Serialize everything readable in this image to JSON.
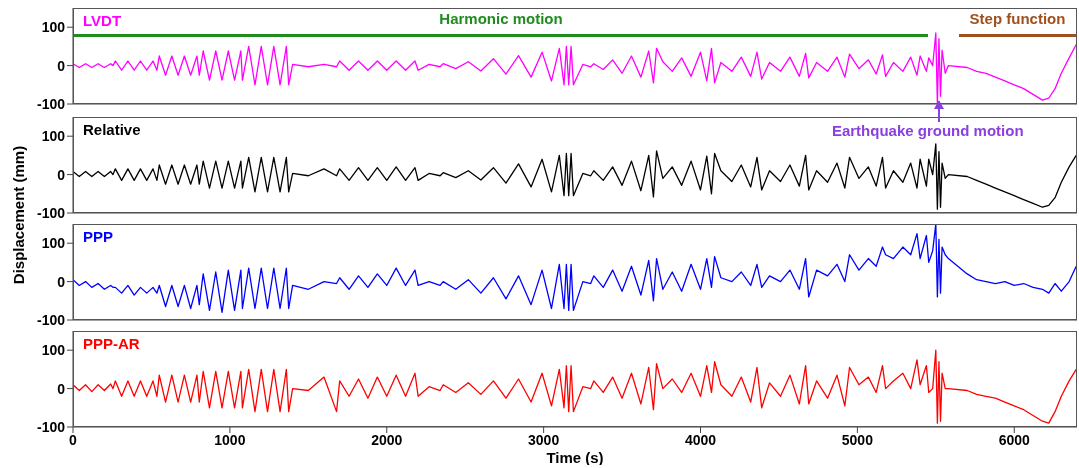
{
  "chart_data": [
    {
      "type": "line",
      "tick_labels": "y",
      "xlim": [
        0,
        6400
      ],
      "xticks": [
        0,
        1000,
        2000,
        3000,
        4000,
        5000,
        6000
      ],
      "ylim": [
        -100,
        150
      ],
      "yticks": [
        -100,
        0,
        100
      ],
      "x": [
        0,
        40,
        80,
        120,
        160,
        200,
        240,
        255,
        270,
        310,
        350,
        390,
        430,
        470,
        510,
        535,
        550,
        590,
        630,
        670,
        710,
        750,
        790,
        805,
        830,
        870,
        910,
        950,
        990,
        1030,
        1070,
        1080,
        1120,
        1160,
        1200,
        1240,
        1280,
        1320,
        1360,
        1375,
        1400,
        1500,
        1600,
        1680,
        1700,
        1760,
        1820,
        1880,
        1940,
        2000,
        2060,
        2120,
        2180,
        2200,
        2270,
        2340,
        2360,
        2440,
        2520,
        2600,
        2680,
        2760,
        2840,
        2920,
        2990,
        3050,
        3100,
        3130,
        3145,
        3160,
        3175,
        3190,
        3250,
        3300,
        3320,
        3380,
        3440,
        3500,
        3560,
        3620,
        3670,
        3700,
        3720,
        3760,
        3820,
        3880,
        3940,
        4000,
        4040,
        4070,
        4090,
        4130,
        4200,
        4260,
        4320,
        4360,
        4390,
        4440,
        4510,
        4570,
        4630,
        4670,
        4690,
        4740,
        4810,
        4870,
        4920,
        4950,
        5010,
        5070,
        5120,
        5160,
        5180,
        5230,
        5290,
        5340,
        5380,
        5400,
        5440,
        5455,
        5480,
        5500,
        5510,
        5520,
        5530,
        5540,
        5560,
        5580,
        5700,
        5760,
        5820,
        5880,
        5940,
        6000,
        6060,
        6120,
        6180,
        6220,
        6260,
        6300,
        6350,
        6395
      ],
      "series": [
        {
          "name": "LVDT",
          "color": "#ff00ff",
          "values": [
            5,
            -5,
            5,
            -5,
            5,
            -5,
            5,
            0,
            12,
            -12,
            12,
            -12,
            12,
            -12,
            12,
            -12,
            25,
            -25,
            25,
            -25,
            25,
            -25,
            25,
            -25,
            38,
            -38,
            38,
            -38,
            38,
            -38,
            38,
            -38,
            50,
            -50,
            50,
            -50,
            50,
            -50,
            50,
            -50,
            3,
            -3,
            3,
            -3,
            12,
            -12,
            12,
            -12,
            12,
            -12,
            12,
            -12,
            12,
            -12,
            3,
            -3,
            5,
            -8,
            10,
            -14,
            18,
            -22,
            26,
            -30,
            35,
            -40,
            45,
            -50,
            50,
            -50,
            50,
            -50,
            3,
            -3,
            5,
            -10,
            15,
            -20,
            25,
            -30,
            38,
            -45,
            45,
            10,
            -15,
            20,
            -28,
            35,
            -40,
            45,
            -45,
            8,
            -15,
            22,
            -28,
            35,
            -35,
            8,
            -15,
            22,
            -28,
            32,
            -32,
            8,
            -15,
            22,
            -30,
            30,
            -8,
            15,
            -22,
            28,
            -28,
            8,
            -15,
            22,
            -25,
            25,
            -15,
            20,
            0,
            85,
            -100,
            70,
            -80,
            40,
            -20,
            0,
            -5,
            -15,
            -20,
            -30,
            -40,
            -50,
            -60,
            -75,
            -90,
            -85,
            -60,
            -20,
            20,
            55
          ]
        }
      ],
      "annotations": [
        "Harmonic motion",
        "Step function",
        {
          "text": "Earthquake ground motion",
          "x": 5520,
          "y": -100
        }
      ]
    },
    {
      "type": "line",
      "tick_labels": "y",
      "ylabel": "Displacement (mm)",
      "xlim": [
        0,
        6400
      ],
      "xticks": [
        0,
        1000,
        2000,
        3000,
        4000,
        5000,
        6000
      ],
      "ylim": [
        -100,
        150
      ],
      "yticks": [
        -100,
        0,
        100
      ],
      "x": [
        0,
        40,
        80,
        120,
        160,
        200,
        240,
        255,
        270,
        310,
        350,
        390,
        430,
        470,
        510,
        535,
        550,
        590,
        630,
        670,
        710,
        750,
        790,
        805,
        830,
        870,
        910,
        950,
        990,
        1030,
        1070,
        1080,
        1120,
        1160,
        1200,
        1240,
        1280,
        1320,
        1360,
        1375,
        1400,
        1500,
        1600,
        1680,
        1700,
        1760,
        1820,
        1880,
        1940,
        2000,
        2060,
        2120,
        2180,
        2200,
        2270,
        2340,
        2360,
        2440,
        2520,
        2600,
        2680,
        2760,
        2840,
        2920,
        2990,
        3050,
        3100,
        3130,
        3145,
        3160,
        3175,
        3190,
        3250,
        3300,
        3320,
        3380,
        3440,
        3500,
        3560,
        3620,
        3670,
        3700,
        3720,
        3760,
        3820,
        3880,
        3940,
        4000,
        4040,
        4070,
        4090,
        4130,
        4200,
        4260,
        4320,
        4360,
        4390,
        4440,
        4510,
        4570,
        4630,
        4670,
        4690,
        4740,
        4810,
        4870,
        4920,
        4950,
        5010,
        5070,
        5120,
        5160,
        5180,
        5230,
        5290,
        5340,
        5380,
        5400,
        5440,
        5455,
        5480,
        5500,
        5510,
        5520,
        5530,
        5540,
        5560,
        5580,
        5700,
        5760,
        5820,
        5880,
        5940,
        6000,
        6060,
        6120,
        6180,
        6220,
        6260,
        6300,
        6350,
        6395
      ],
      "series": [
        {
          "name": "Relative",
          "color": "#000000",
          "values": [
            8,
            -5,
            8,
            -5,
            8,
            -5,
            8,
            0,
            15,
            -15,
            15,
            -15,
            15,
            -15,
            15,
            -15,
            25,
            -25,
            25,
            -25,
            25,
            -25,
            25,
            -25,
            35,
            -35,
            35,
            -35,
            35,
            -35,
            35,
            -35,
            45,
            -45,
            45,
            -45,
            45,
            -45,
            45,
            -45,
            3,
            -3,
            15,
            -3,
            15,
            -15,
            18,
            -15,
            18,
            -15,
            20,
            -15,
            18,
            -15,
            3,
            -3,
            5,
            -8,
            10,
            -14,
            18,
            -22,
            28,
            -32,
            40,
            -45,
            50,
            -55,
            55,
            -55,
            55,
            -55,
            3,
            -3,
            10,
            -15,
            20,
            -28,
            35,
            -42,
            50,
            -58,
            62,
            -10,
            20,
            -28,
            35,
            -40,
            48,
            -50,
            55,
            10,
            -18,
            25,
            -32,
            45,
            -40,
            10,
            -18,
            25,
            -30,
            50,
            -40,
            10,
            -20,
            30,
            -35,
            45,
            -10,
            20,
            -30,
            45,
            -35,
            10,
            -20,
            30,
            -35,
            40,
            -30,
            40,
            0,
            80,
            -90,
            60,
            -85,
            30,
            -10,
            0,
            -5,
            -15,
            -25,
            -35,
            -45,
            -55,
            -65,
            -75,
            -85,
            -80,
            -60,
            -20,
            20,
            50
          ]
        }
      ]
    },
    {
      "type": "line",
      "tick_labels": "y",
      "xlim": [
        0,
        6400
      ],
      "xticks": [
        0,
        1000,
        2000,
        3000,
        4000,
        5000,
        6000
      ],
      "ylim": [
        -100,
        150
      ],
      "yticks": [
        -100,
        0,
        100
      ],
      "x": [
        0,
        40,
        80,
        120,
        160,
        200,
        240,
        255,
        270,
        310,
        350,
        390,
        430,
        470,
        510,
        535,
        550,
        590,
        630,
        670,
        710,
        750,
        790,
        805,
        830,
        870,
        910,
        950,
        990,
        1030,
        1070,
        1080,
        1120,
        1160,
        1200,
        1240,
        1280,
        1320,
        1360,
        1375,
        1400,
        1500,
        1600,
        1680,
        1700,
        1760,
        1820,
        1880,
        1940,
        2000,
        2060,
        2120,
        2180,
        2200,
        2270,
        2340,
        2360,
        2440,
        2520,
        2600,
        2680,
        2760,
        2840,
        2920,
        2990,
        3050,
        3100,
        3130,
        3145,
        3160,
        3175,
        3190,
        3250,
        3300,
        3320,
        3380,
        3440,
        3500,
        3560,
        3620,
        3670,
        3700,
        3720,
        3760,
        3820,
        3880,
        3940,
        4000,
        4040,
        4070,
        4090,
        4130,
        4200,
        4260,
        4320,
        4360,
        4390,
        4440,
        4510,
        4570,
        4630,
        4670,
        4690,
        4740,
        4810,
        4870,
        4920,
        4950,
        5010,
        5070,
        5120,
        5160,
        5180,
        5230,
        5290,
        5340,
        5380,
        5400,
        5440,
        5455,
        5480,
        5500,
        5510,
        5520,
        5530,
        5540,
        5560,
        5580,
        5700,
        5760,
        5820,
        5880,
        5940,
        6000,
        6060,
        6120,
        6180,
        6220,
        6260,
        6300,
        6350,
        6395
      ],
      "series": [
        {
          "name": "PPP",
          "color": "#0000ff",
          "values": [
            5,
            -10,
            0,
            -15,
            -5,
            -20,
            -10,
            -15,
            -15,
            -30,
            -10,
            -35,
            -15,
            -30,
            -15,
            -30,
            -10,
            -65,
            -10,
            -65,
            -10,
            -70,
            -10,
            -60,
            20,
            -75,
            25,
            -80,
            30,
            -75,
            30,
            -70,
            35,
            -70,
            35,
            -70,
            35,
            -70,
            35,
            -70,
            -10,
            -20,
            0,
            -5,
            10,
            -20,
            15,
            -15,
            20,
            -10,
            35,
            -10,
            30,
            -10,
            0,
            -10,
            0,
            -20,
            5,
            -30,
            10,
            -45,
            15,
            -60,
            30,
            -70,
            45,
            -70,
            45,
            -75,
            45,
            -75,
            0,
            -5,
            15,
            -15,
            30,
            -25,
            40,
            -35,
            55,
            -50,
            60,
            -20,
            25,
            -25,
            45,
            -20,
            60,
            -15,
            65,
            10,
            0,
            25,
            -10,
            45,
            -15,
            15,
            0,
            30,
            -20,
            60,
            -40,
            30,
            15,
            45,
            0,
            70,
            30,
            60,
            40,
            90,
            70,
            60,
            90,
            70,
            125,
            60,
            120,
            50,
            80,
            150,
            -40,
            110,
            -30,
            90,
            70,
            60,
            20,
            5,
            0,
            -5,
            0,
            -10,
            -5,
            -15,
            -20,
            -30,
            -5,
            -25,
            0,
            40
          ]
        }
      ]
    },
    {
      "type": "line",
      "xlabel": "Time (s)",
      "xlim": [
        0,
        6400
      ],
      "xticks": [
        0,
        1000,
        2000,
        3000,
        4000,
        5000,
        6000
      ],
      "ylim": [
        -100,
        150
      ],
      "yticks": [
        -100,
        0,
        100
      ],
      "x": [
        0,
        40,
        80,
        120,
        160,
        200,
        240,
        255,
        270,
        310,
        350,
        390,
        430,
        470,
        510,
        535,
        550,
        590,
        630,
        670,
        710,
        750,
        790,
        805,
        830,
        870,
        910,
        950,
        990,
        1030,
        1070,
        1080,
        1120,
        1160,
        1200,
        1240,
        1280,
        1320,
        1360,
        1375,
        1400,
        1500,
        1600,
        1680,
        1700,
        1760,
        1820,
        1880,
        1940,
        2000,
        2060,
        2120,
        2180,
        2200,
        2270,
        2340,
        2360,
        2440,
        2520,
        2600,
        2680,
        2760,
        2840,
        2920,
        2990,
        3050,
        3100,
        3130,
        3145,
        3160,
        3175,
        3190,
        3250,
        3300,
        3320,
        3380,
        3440,
        3500,
        3560,
        3620,
        3670,
        3700,
        3720,
        3760,
        3820,
        3880,
        3940,
        4000,
        4040,
        4070,
        4090,
        4130,
        4200,
        4260,
        4320,
        4360,
        4390,
        4440,
        4510,
        4570,
        4630,
        4670,
        4690,
        4740,
        4810,
        4870,
        4920,
        4950,
        5010,
        5070,
        5120,
        5160,
        5180,
        5230,
        5290,
        5340,
        5380,
        5400,
        5440,
        5455,
        5480,
        5500,
        5510,
        5520,
        5530,
        5540,
        5560,
        5580,
        5700,
        5760,
        5820,
        5880,
        5940,
        6000,
        6060,
        6120,
        6180,
        6220,
        6260,
        6300,
        6350,
        6395
      ],
      "series": [
        {
          "name": "PPP-AR",
          "color": "#ff0000",
          "values": [
            10,
            -5,
            10,
            -8,
            10,
            -5,
            12,
            0,
            20,
            -20,
            20,
            -20,
            20,
            -20,
            20,
            -20,
            35,
            -35,
            35,
            -35,
            35,
            -35,
            35,
            -35,
            45,
            -50,
            45,
            -50,
            45,
            -50,
            45,
            -50,
            50,
            -60,
            50,
            -60,
            50,
            -60,
            50,
            -60,
            0,
            -5,
            30,
            -60,
            20,
            -20,
            25,
            -25,
            30,
            -20,
            35,
            -20,
            40,
            -20,
            5,
            -5,
            10,
            -10,
            15,
            -15,
            20,
            -25,
            25,
            -35,
            40,
            -45,
            50,
            -50,
            60,
            -60,
            60,
            -60,
            5,
            0,
            20,
            -10,
            30,
            -25,
            40,
            -40,
            55,
            -55,
            65,
            0,
            25,
            -10,
            40,
            -20,
            60,
            -10,
            70,
            10,
            -20,
            30,
            -35,
            55,
            -50,
            15,
            -20,
            35,
            -40,
            60,
            -40,
            20,
            -25,
            35,
            -45,
            55,
            10,
            30,
            -10,
            60,
            0,
            20,
            40,
            0,
            75,
            10,
            60,
            -10,
            0,
            100,
            -90,
            70,
            -85,
            40,
            0,
            0,
            -5,
            -15,
            -20,
            -25,
            -35,
            -45,
            -55,
            -70,
            -85,
            -90,
            -60,
            -20,
            20,
            50
          ]
        }
      ]
    }
  ]
}
